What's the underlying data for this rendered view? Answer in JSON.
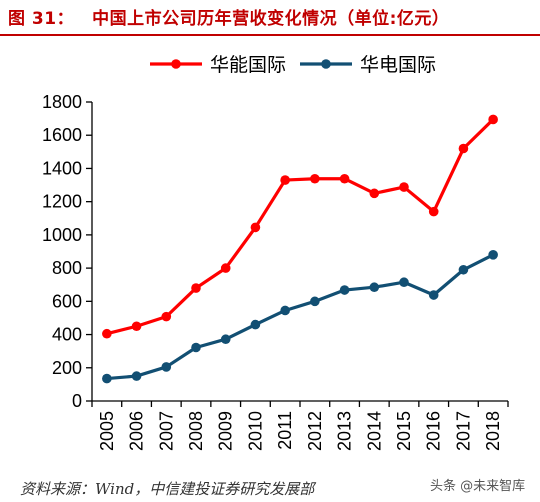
{
  "figure": {
    "number": "图 31：",
    "title": "中国上市公司历年营收变化情况（单位:亿元）",
    "source": "资料来源：Wind，中信建投证券研究发展部",
    "watermark": "头条 @未来智库"
  },
  "chart_data": {
    "type": "line",
    "x": [
      "2005",
      "2006",
      "2007",
      "2008",
      "2009",
      "2010",
      "2011",
      "2012",
      "2013",
      "2014",
      "2015",
      "2016",
      "2017",
      "2018"
    ],
    "ylim": [
      0,
      1800
    ],
    "yticks": [
      0,
      200,
      400,
      600,
      800,
      1000,
      1200,
      1400,
      1600,
      1800
    ],
    "legend_position": "top",
    "grid": false,
    "series": [
      {
        "name": "华能国际",
        "color": "#ff0000",
        "values": [
          405,
          450,
          508,
          680,
          800,
          1045,
          1330,
          1338,
          1338,
          1250,
          1288,
          1140,
          1520,
          1695
        ]
      },
      {
        "name": "华电国际",
        "color": "#124f73",
        "values": [
          135,
          150,
          205,
          322,
          372,
          460,
          545,
          600,
          668,
          685,
          715,
          638,
          790,
          880
        ]
      }
    ]
  }
}
